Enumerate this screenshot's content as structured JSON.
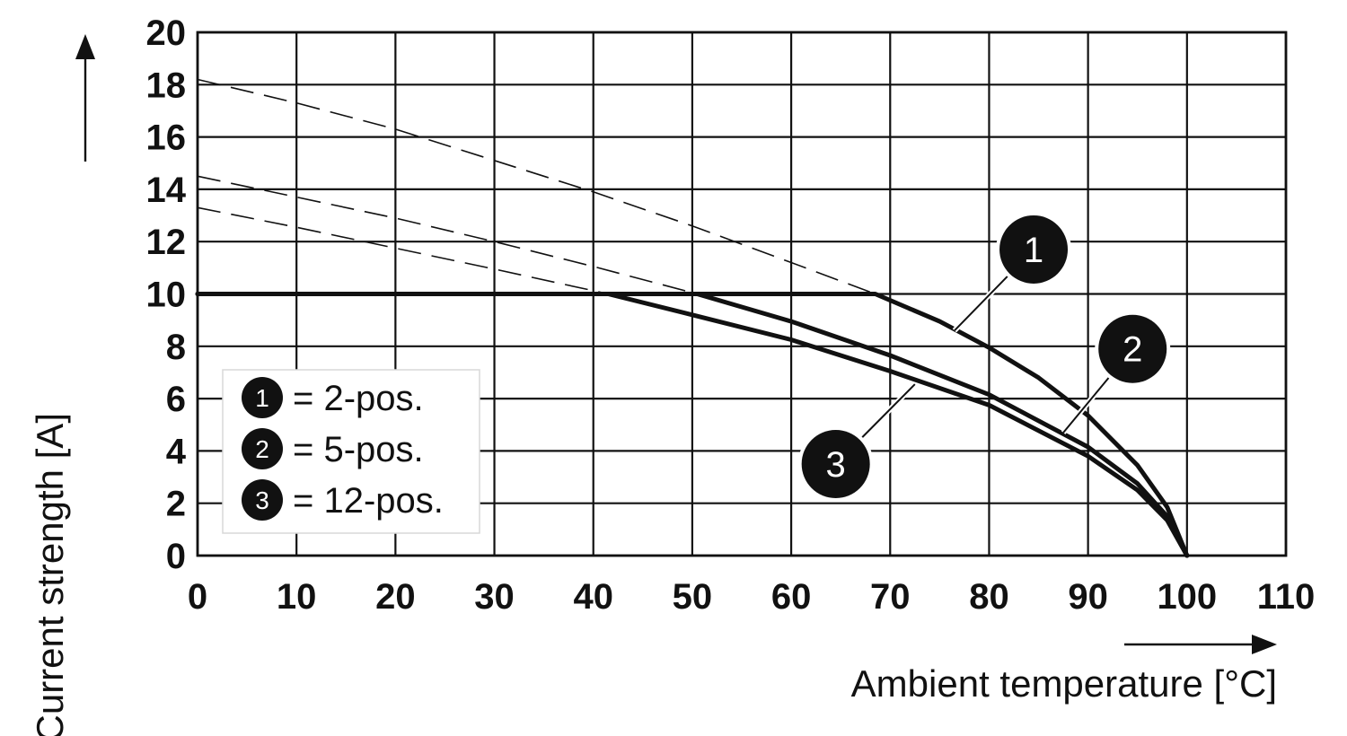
{
  "chart_data": {
    "type": "line",
    "xlabel": "Ambient temperature [°C]",
    "ylabel": "Current strength [A]",
    "xlim": [
      0,
      110
    ],
    "ylim": [
      0,
      20
    ],
    "x_ticks": [
      0,
      10,
      20,
      30,
      40,
      50,
      60,
      70,
      80,
      90,
      100,
      110
    ],
    "y_ticks": [
      0,
      2,
      4,
      6,
      8,
      10,
      12,
      14,
      16,
      18,
      20
    ],
    "grid": true,
    "legend_position": "bottom-left",
    "legend": [
      {
        "marker": "1",
        "text": "= 2-pos."
      },
      {
        "marker": "2",
        "text": "= 5-pos."
      },
      {
        "marker": "3",
        "text": "= 12-pos."
      }
    ],
    "current_limit": 10,
    "series": [
      {
        "marker": "1",
        "derating": [
          [
            0,
            18.2
          ],
          [
            10,
            17.3
          ],
          [
            20,
            16.3
          ],
          [
            30,
            15.1
          ],
          [
            40,
            13.9
          ],
          [
            50,
            12.6
          ],
          [
            60,
            11.2
          ],
          [
            68.5,
            10
          ]
        ],
        "rated": [
          [
            0,
            10
          ],
          [
            68.5,
            10
          ],
          [
            75,
            8.95
          ],
          [
            80,
            7.95
          ],
          [
            85,
            6.8
          ],
          [
            90,
            5.35
          ],
          [
            95,
            3.45
          ],
          [
            98,
            1.85
          ],
          [
            100,
            0
          ]
        ]
      },
      {
        "marker": "2",
        "derating": [
          [
            0,
            14.5
          ],
          [
            10,
            13.7
          ],
          [
            20,
            12.9
          ],
          [
            30,
            12.0
          ],
          [
            40,
            11.05
          ],
          [
            50.5,
            10
          ]
        ],
        "rated": [
          [
            0,
            10
          ],
          [
            50.5,
            10
          ],
          [
            60,
            8.95
          ],
          [
            70,
            7.65
          ],
          [
            80,
            6.15
          ],
          [
            90,
            4.15
          ],
          [
            95,
            2.75
          ],
          [
            98,
            1.5
          ],
          [
            100,
            0
          ]
        ]
      },
      {
        "marker": "3",
        "derating": [
          [
            0,
            13.3
          ],
          [
            10,
            12.55
          ],
          [
            20,
            11.75
          ],
          [
            30,
            10.95
          ],
          [
            41.5,
            10
          ]
        ],
        "rated": [
          [
            0,
            10
          ],
          [
            41.5,
            10
          ],
          [
            50,
            9.2
          ],
          [
            60,
            8.25
          ],
          [
            70,
            7.05
          ],
          [
            80,
            5.75
          ],
          [
            90,
            3.8
          ],
          [
            95,
            2.5
          ],
          [
            98,
            1.35
          ],
          [
            100,
            0
          ]
        ]
      }
    ],
    "annotations": [
      {
        "marker": "1",
        "at": [
          76.5,
          8.6
        ],
        "badge": [
          84.5,
          11.7
        ]
      },
      {
        "marker": "2",
        "at": [
          87.5,
          4.7
        ],
        "badge": [
          94.5,
          7.9
        ]
      },
      {
        "marker": "3",
        "at": [
          72.5,
          6.55
        ],
        "badge": [
          64.5,
          3.5
        ]
      }
    ]
  }
}
